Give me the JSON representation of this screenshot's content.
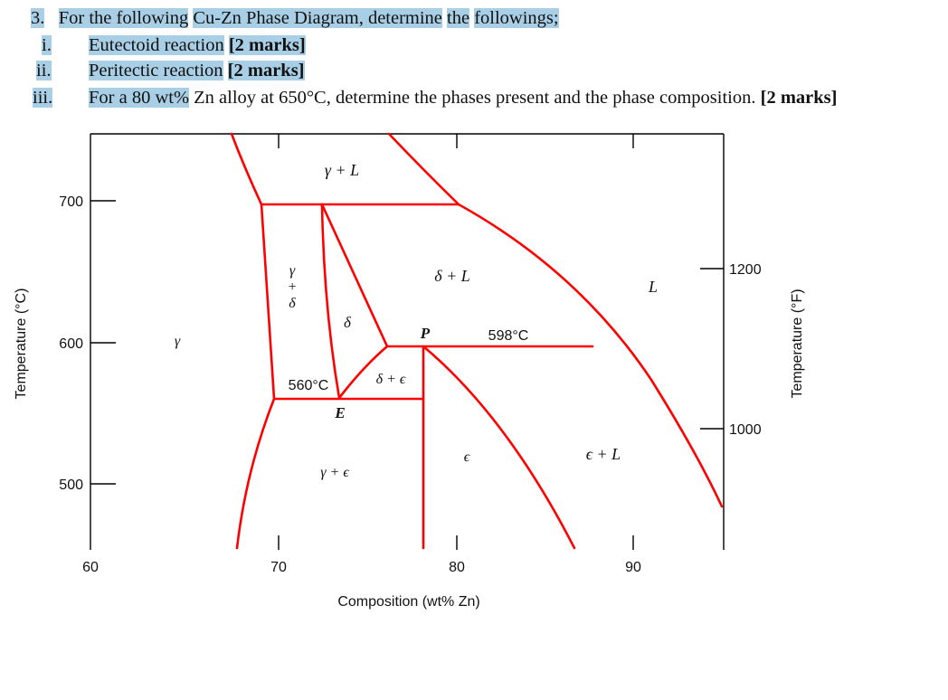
{
  "question": {
    "number": "3.",
    "prompt_part1": "For the following",
    "prompt_part2": "Cu-Zn Phase Diagram, determine",
    "prompt_part3": "the",
    "prompt_part4": "followings;",
    "items": [
      {
        "num": "i.",
        "text": "Eutectoid reaction",
        "marks": "[2 marks]"
      },
      {
        "num": "ii.",
        "text": "Peritectic reaction",
        "marks": "[2 marks]"
      },
      {
        "num": "iii.",
        "text_hl": "For a 80 wt%",
        "text_rest": " Zn alloy at 650°C, determine the phases present and the phase composition.",
        "marks": "[2 marks]"
      }
    ]
  },
  "diagram": {
    "line_color": "#ff0000",
    "x_ticks": [
      "60",
      "70",
      "80",
      "90"
    ],
    "y_ticks_left": [
      "700",
      "600",
      "500"
    ],
    "y_ticks_right": [
      "1200",
      "1000"
    ],
    "xlabel": "Composition (wt% Zn)",
    "ylabel_left": "Temperature (°C)",
    "ylabel_right": "Temperature (°F)",
    "labels": {
      "gamma_L": "γ + L",
      "gamma_v": "γ",
      "plus_v": "+",
      "delta_v": "δ",
      "delta": "δ",
      "delta_L": "δ + L",
      "L": "L",
      "gamma": "γ",
      "P": "P",
      "temp_598": "598°C",
      "temp_560": "560°C",
      "E": "E",
      "delta_eps": "δ + ϵ",
      "gamma_eps": "γ + ϵ",
      "eps": "ϵ",
      "eps_L": "ϵ + L"
    }
  }
}
